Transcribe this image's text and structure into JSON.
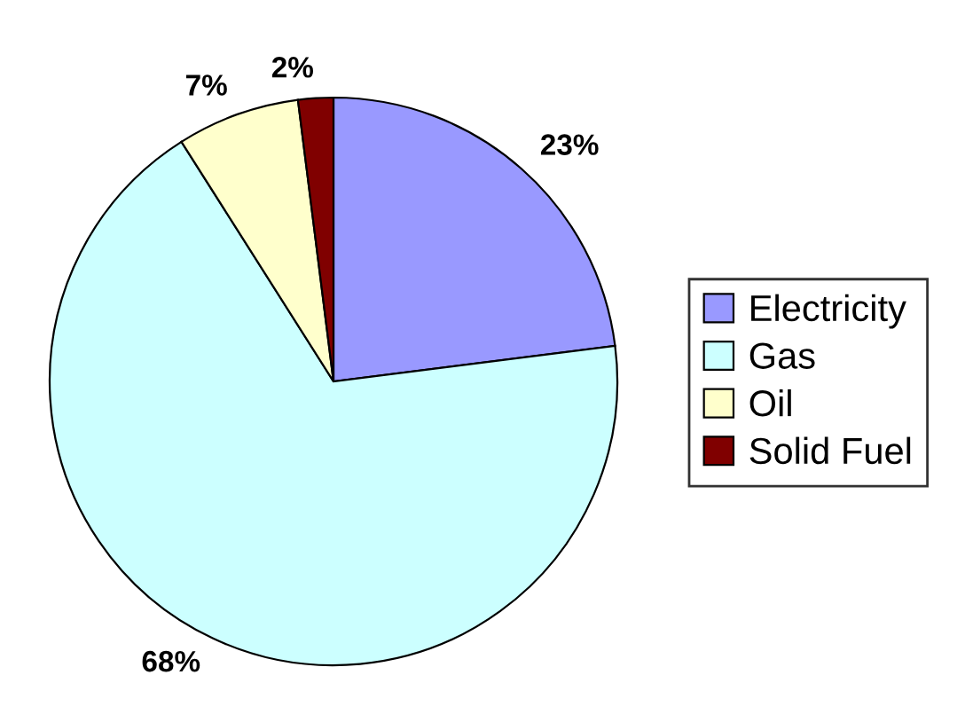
{
  "chart_data": {
    "type": "pie",
    "categories": [
      "Electricity",
      "Gas",
      "Oil",
      "Solid Fuel"
    ],
    "values": [
      23,
      68,
      7,
      2
    ],
    "colors": [
      "#9999ff",
      "#ccffff",
      "#ffffcc",
      "#800000"
    ],
    "value_labels": [
      "23%",
      "68%",
      "7%",
      "2%"
    ],
    "legend": "right"
  }
}
